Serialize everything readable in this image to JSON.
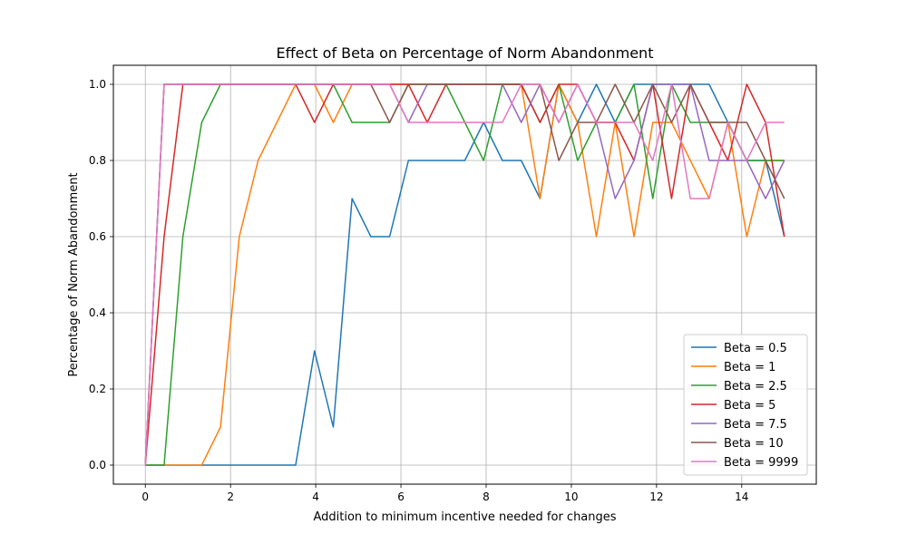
{
  "chart_data": {
    "type": "line",
    "title": "Effect of Beta on Percentage of Norm Abandonment",
    "xlabel": "Addition to minimum incentive needed for changes",
    "ylabel": "Percentage of Norm Abandonment",
    "xlim": [
      -0.75,
      15.75
    ],
    "ylim": [
      -0.05,
      1.05
    ],
    "xticks": [
      0,
      2,
      4,
      6,
      8,
      10,
      12,
      14
    ],
    "yticks": [
      0.0,
      0.2,
      0.4,
      0.6,
      0.8,
      1.0
    ],
    "xtick_labels": [
      "0",
      "2",
      "4",
      "6",
      "8",
      "10",
      "12",
      "14"
    ],
    "ytick_labels": [
      "0.0",
      "0.2",
      "0.4",
      "0.6",
      "0.8",
      "1.0"
    ],
    "grid": true,
    "legend_position": "lower-right",
    "x": [
      0,
      0.441,
      0.882,
      1.324,
      1.765,
      2.206,
      2.647,
      3.088,
      3.529,
      3.971,
      4.412,
      4.853,
      5.294,
      5.735,
      6.176,
      6.618,
      7.059,
      7.5,
      7.941,
      8.382,
      8.824,
      9.265,
      9.706,
      10.147,
      10.588,
      11.029,
      11.471,
      11.912,
      12.353,
      12.794,
      13.235,
      13.676,
      14.118,
      14.559,
      15.0
    ],
    "series": [
      {
        "name": "Beta = 0.5",
        "color": "#1f77b4",
        "values": [
          0,
          0,
          0,
          0,
          0,
          0,
          0,
          0,
          0,
          0.3,
          0.1,
          0.7,
          0.6,
          0.6,
          0.8,
          0.8,
          0.8,
          0.8,
          0.9,
          0.8,
          0.8,
          0.7,
          1.0,
          0.9,
          1.0,
          0.9,
          1.0,
          1.0,
          1.0,
          1.0,
          1.0,
          0.9,
          0.8,
          0.8,
          0.6
        ]
      },
      {
        "name": "Beta = 1",
        "color": "#ff7f0e",
        "values": [
          0,
          0,
          0,
          0,
          0.1,
          0.6,
          0.8,
          0.9,
          1.0,
          1.0,
          0.9,
          1.0,
          1.0,
          1.0,
          1.0,
          1.0,
          1.0,
          1.0,
          1.0,
          1.0,
          1.0,
          0.7,
          1.0,
          0.9,
          0.6,
          0.9,
          0.6,
          0.9,
          0.9,
          0.8,
          0.7,
          0.9,
          0.6,
          0.8,
          0.8
        ]
      },
      {
        "name": "Beta = 2.5",
        "color": "#2ca02c",
        "values": [
          0,
          0,
          0.6,
          0.9,
          1.0,
          1.0,
          1.0,
          1.0,
          1.0,
          1.0,
          1.0,
          0.9,
          0.9,
          0.9,
          1.0,
          1.0,
          1.0,
          0.9,
          0.8,
          1.0,
          1.0,
          0.9,
          1.0,
          0.8,
          0.9,
          0.9,
          1.0,
          0.7,
          1.0,
          0.9,
          0.9,
          0.9,
          0.8,
          0.8,
          0.8
        ]
      },
      {
        "name": "Beta = 5",
        "color": "#d62728",
        "values": [
          0,
          0.6,
          1.0,
          1.0,
          1.0,
          1.0,
          1.0,
          1.0,
          1.0,
          0.9,
          1.0,
          1.0,
          1.0,
          1.0,
          1.0,
          0.9,
          1.0,
          1.0,
          1.0,
          1.0,
          1.0,
          0.9,
          1.0,
          1.0,
          0.9,
          0.9,
          0.8,
          1.0,
          0.7,
          1.0,
          0.9,
          0.8,
          1.0,
          0.9,
          0.6
        ]
      },
      {
        "name": "Beta = 7.5",
        "color": "#9467bd",
        "values": [
          0,
          1.0,
          1.0,
          1.0,
          1.0,
          1.0,
          1.0,
          1.0,
          1.0,
          1.0,
          1.0,
          1.0,
          1.0,
          1.0,
          0.9,
          1.0,
          1.0,
          1.0,
          1.0,
          1.0,
          0.9,
          1.0,
          0.9,
          1.0,
          0.9,
          0.7,
          0.8,
          1.0,
          1.0,
          1.0,
          0.8,
          0.8,
          0.8,
          0.7,
          0.8
        ]
      },
      {
        "name": "Beta = 10",
        "color": "#8c564b",
        "values": [
          0,
          1.0,
          1.0,
          1.0,
          1.0,
          1.0,
          1.0,
          1.0,
          1.0,
          1.0,
          1.0,
          1.0,
          1.0,
          0.9,
          1.0,
          1.0,
          1.0,
          1.0,
          1.0,
          1.0,
          1.0,
          1.0,
          0.8,
          0.9,
          0.9,
          1.0,
          0.9,
          1.0,
          0.9,
          1.0,
          0.9,
          0.9,
          0.9,
          0.8,
          0.7
        ]
      },
      {
        "name": "Beta = 9999",
        "color": "#e377c2",
        "values": [
          0,
          1.0,
          1.0,
          1.0,
          1.0,
          1.0,
          1.0,
          1.0,
          1.0,
          1.0,
          1.0,
          1.0,
          1.0,
          1.0,
          0.9,
          0.9,
          0.9,
          0.9,
          0.9,
          0.9,
          1.0,
          1.0,
          0.9,
          1.0,
          0.9,
          0.9,
          0.9,
          0.8,
          1.0,
          0.7,
          0.7,
          0.9,
          0.8,
          0.9,
          0.9
        ]
      }
    ]
  }
}
